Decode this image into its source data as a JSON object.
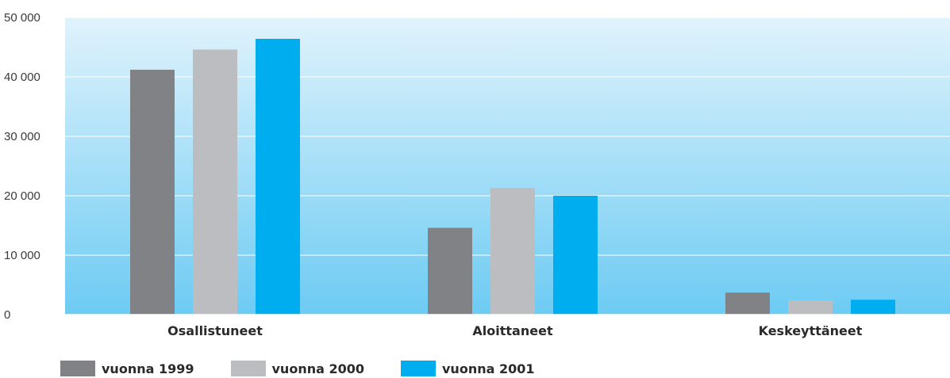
{
  "chart_data": {
    "type": "bar",
    "title": "",
    "xlabel": "",
    "ylabel": "",
    "categories": [
      "Osallistuneet",
      "Aloittaneet",
      "Keskeyttäneet"
    ],
    "series": [
      {
        "name": "vuonna 1999",
        "color": "#808285",
        "values": [
          41200,
          14600,
          3700
        ]
      },
      {
        "name": "vuonna 2000",
        "color": "#bcbdc0",
        "values": [
          44600,
          21300,
          2400
        ]
      },
      {
        "name": "vuonna 2001",
        "color": "#00aeef",
        "values": [
          46400,
          20000,
          2500
        ]
      }
    ],
    "ylim": [
      0,
      50000
    ],
    "yticks": [
      0,
      10000,
      20000,
      30000,
      40000,
      50000
    ],
    "ytick_labels": [
      "0",
      "10 000",
      "20 000",
      "30 000",
      "40 000",
      "50 000"
    ],
    "grid": true,
    "legend_position": "bottom-left",
    "background_gradient": [
      "#e0f3fc",
      "#6dcbf3"
    ]
  }
}
